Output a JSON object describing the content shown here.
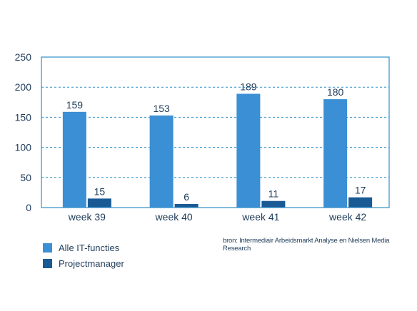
{
  "chart_data": {
    "type": "bar",
    "categories": [
      "week 39",
      "week 40",
      "week 41",
      "week 42"
    ],
    "series": [
      {
        "name": "Alle IT-functies",
        "values": [
          159,
          153,
          189,
          180
        ],
        "color": "#3b8fd4"
      },
      {
        "name": "Projectmanager",
        "values": [
          15,
          6,
          11,
          17
        ],
        "color": "#1a5a94"
      }
    ],
    "ylim": [
      0,
      250
    ],
    "yticks": [
      0,
      50,
      100,
      150,
      200,
      250
    ],
    "grid": true,
    "legend": "bottom-left",
    "axis_color": "#2f8fc8"
  },
  "source": "bron: Intermediair Arbeidsmarkt Analyse en Nielsen Media Research"
}
